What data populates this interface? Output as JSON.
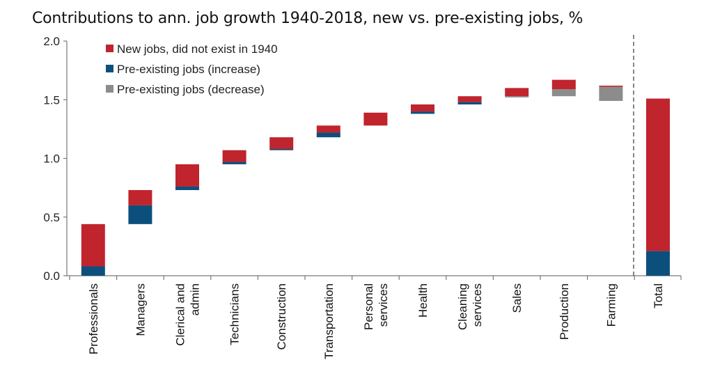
{
  "chart_data": {
    "type": "bar",
    "subtype": "waterfall",
    "title": "Contributions to ann. job growth 1940-2018, new vs. pre-existing jobs, %",
    "ylim": [
      0,
      2.0
    ],
    "yticks": [
      "0.0",
      "0.5",
      "1.0",
      "1.5",
      "2.0"
    ],
    "ytick_values": [
      0,
      0.5,
      1.0,
      1.5,
      2.0
    ],
    "legend": [
      {
        "name": "New jobs, did not exist in 1940",
        "color": "#c0242d"
      },
      {
        "name": "Pre-existing jobs (increase)",
        "color": "#0d4f7c"
      },
      {
        "name": "Pre-existing jobs (decrease)",
        "color": "#8c8c8c"
      }
    ],
    "categories": [
      {
        "label": [
          "Professionals"
        ],
        "segments": [
          {
            "series": "Pre-existing jobs (increase)",
            "from": 0.0,
            "to": 0.08
          },
          {
            "series": "New jobs, did not exist in 1940",
            "from": 0.08,
            "to": 0.44
          }
        ]
      },
      {
        "label": [
          "Managers"
        ],
        "segments": [
          {
            "series": "Pre-existing jobs (increase)",
            "from": 0.44,
            "to": 0.6
          },
          {
            "series": "New jobs, did not exist in 1940",
            "from": 0.6,
            "to": 0.73
          }
        ]
      },
      {
        "label": [
          "Clerical and",
          "admin"
        ],
        "segments": [
          {
            "series": "Pre-existing jobs (increase)",
            "from": 0.73,
            "to": 0.76
          },
          {
            "series": "New jobs, did not exist in 1940",
            "from": 0.76,
            "to": 0.95
          }
        ]
      },
      {
        "label": [
          "Technicians"
        ],
        "segments": [
          {
            "series": "Pre-existing jobs (increase)",
            "from": 0.95,
            "to": 0.97
          },
          {
            "series": "New jobs, did not exist in 1940",
            "from": 0.97,
            "to": 1.07
          }
        ]
      },
      {
        "label": [
          "Construction"
        ],
        "segments": [
          {
            "series": "Pre-existing jobs (increase)",
            "from": 1.07,
            "to": 1.08
          },
          {
            "series": "New jobs, did not exist in 1940",
            "from": 1.08,
            "to": 1.18
          }
        ]
      },
      {
        "label": [
          "Transportation"
        ],
        "segments": [
          {
            "series": "Pre-existing jobs (increase)",
            "from": 1.18,
            "to": 1.22
          },
          {
            "series": "New jobs, did not exist in 1940",
            "from": 1.22,
            "to": 1.28
          }
        ]
      },
      {
        "label": [
          "Personal",
          "services"
        ],
        "segments": [
          {
            "series": "New jobs, did not exist in 1940",
            "from": 1.28,
            "to": 1.39
          }
        ]
      },
      {
        "label": [
          "Health"
        ],
        "segments": [
          {
            "series": "Pre-existing jobs (increase)",
            "from": 1.38,
            "to": 1.4
          },
          {
            "series": "New jobs, did not exist in 1940",
            "from": 1.4,
            "to": 1.46
          }
        ]
      },
      {
        "label": [
          "Cleaning",
          "services"
        ],
        "segments": [
          {
            "series": "Pre-existing jobs (increase)",
            "from": 1.46,
            "to": 1.48
          },
          {
            "series": "New jobs, did not exist in 1940",
            "from": 1.48,
            "to": 1.53
          }
        ]
      },
      {
        "label": [
          "Sales"
        ],
        "segments": [
          {
            "series": "Pre-existing jobs (decrease)",
            "from": 1.52,
            "to": 1.53
          },
          {
            "series": "New jobs, did not exist in 1940",
            "from": 1.53,
            "to": 1.6
          }
        ]
      },
      {
        "label": [
          "Production"
        ],
        "segments": [
          {
            "series": "Pre-existing jobs (decrease)",
            "from": 1.53,
            "to": 1.59
          },
          {
            "series": "New jobs, did not exist in 1940",
            "from": 1.59,
            "to": 1.67
          }
        ]
      },
      {
        "label": [
          "Farming"
        ],
        "segments": [
          {
            "series": "Pre-existing jobs (decrease)",
            "from": 1.49,
            "to": 1.61
          },
          {
            "series": "New jobs, did not exist in 1940",
            "from": 1.61,
            "to": 1.62
          }
        ]
      }
    ],
    "total": {
      "label": [
        "Total"
      ],
      "segments": [
        {
          "series": "Pre-existing jobs (increase)",
          "from": 0.0,
          "to": 0.21
        },
        {
          "series": "New jobs, did not exist in 1940",
          "from": 0.21,
          "to": 1.51
        }
      ]
    }
  }
}
